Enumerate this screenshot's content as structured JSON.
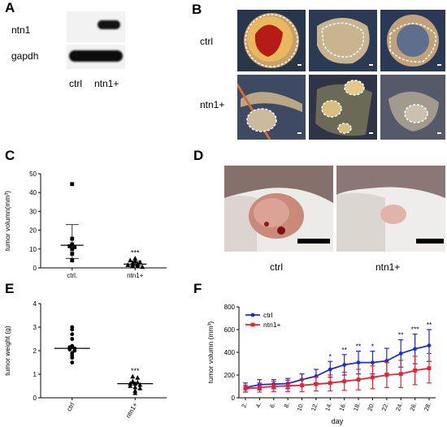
{
  "panels": {
    "A": {
      "letter": "A",
      "rows": [
        "ntn1",
        "gapdh"
      ],
      "lanes": [
        "ctrl",
        "ntn1+"
      ]
    },
    "B": {
      "letter": "B",
      "rows": [
        "ctrl",
        "ntn1+"
      ]
    },
    "D": {
      "letter": "D",
      "labels": [
        "ctrl",
        "ntn1+"
      ]
    }
  },
  "chart_data": [
    {
      "panel": "C",
      "type": "scatter",
      "ylabel": "tumor volumn(mm³)",
      "categories": [
        "ctrl.",
        "ntn1+"
      ],
      "yticks": [
        0,
        10,
        20,
        30,
        40,
        50
      ],
      "ylim": [
        0,
        50
      ],
      "series": [
        {
          "marker": "square",
          "category": "ctrl.",
          "values": [
            44.5,
            15.5,
            12.5,
            11.5,
            11,
            10,
            7.5,
            4
          ],
          "mean": 12,
          "sd": [
            5,
            23
          ]
        },
        {
          "marker": "triangle",
          "category": "ntn1+",
          "values": [
            5,
            4,
            3.5,
            3,
            2.5,
            2,
            1.5,
            1.2,
            1,
            0.5
          ],
          "mean": 2,
          "sd": [
            1,
            3.5
          ]
        }
      ],
      "annotations": [
        {
          "category": "ntn1+",
          "text": "***"
        }
      ]
    },
    {
      "panel": "E",
      "type": "scatter",
      "ylabel": "tumor weight (g)",
      "categories": [
        "ctrl",
        "ntn1+"
      ],
      "yticks": [
        0,
        1,
        2,
        3,
        4
      ],
      "ylim": [
        0,
        4
      ],
      "series": [
        {
          "marker": "circle",
          "category": "ctrl",
          "values": [
            3.0,
            2.9,
            2.7,
            2.5,
            2.2,
            2.15,
            2.1,
            2.05,
            2.0,
            1.9,
            1.8,
            1.7,
            1.5
          ],
          "mean": 2.1
        },
        {
          "marker": "triangle",
          "category": "ntn1+",
          "values": [
            0.9,
            0.85,
            0.7,
            0.65,
            0.6,
            0.6,
            0.55,
            0.5,
            0.45,
            0.4,
            0.3,
            0.2
          ],
          "mean": 0.6
        }
      ],
      "annotations": [
        {
          "category": "ntn1+",
          "text": "***"
        }
      ]
    },
    {
      "panel": "F",
      "type": "line",
      "ylabel": "tumor volumn (mm³)",
      "xlabel": "day",
      "x": [
        2,
        4,
        6,
        8,
        10,
        12,
        14,
        16,
        18,
        20,
        22,
        24,
        26,
        28
      ],
      "yticks": [
        0,
        200,
        400,
        600,
        800
      ],
      "ylim": [
        0,
        800
      ],
      "series": [
        {
          "name": "ctrl",
          "color": "#1f2bd6",
          "marker": "circle",
          "values": [
            90,
            115,
            120,
            125,
            160,
            190,
            250,
            290,
            310,
            310,
            325,
            390,
            430,
            460
          ],
          "err": [
            40,
            45,
            40,
            45,
            50,
            60,
            70,
            90,
            100,
            100,
            110,
            120,
            130,
            140
          ]
        },
        {
          "name": "ntn1+",
          "color": "#e8232c",
          "marker": "square",
          "values": [
            80,
            90,
            100,
            105,
            110,
            120,
            130,
            145,
            160,
            180,
            200,
            210,
            240,
            260
          ],
          "err": [
            30,
            40,
            45,
            50,
            55,
            60,
            70,
            80,
            90,
            100,
            110,
            120,
            125,
            130
          ]
        }
      ],
      "x_annotations": [
        {
          "x": 14,
          "text": "*"
        },
        {
          "x": 16,
          "text": "**"
        },
        {
          "x": 18,
          "text": "**"
        },
        {
          "x": 20,
          "text": "*"
        },
        {
          "x": 24,
          "text": "**"
        },
        {
          "x": 26,
          "text": "***"
        },
        {
          "x": 28,
          "text": "**"
        }
      ]
    }
  ]
}
